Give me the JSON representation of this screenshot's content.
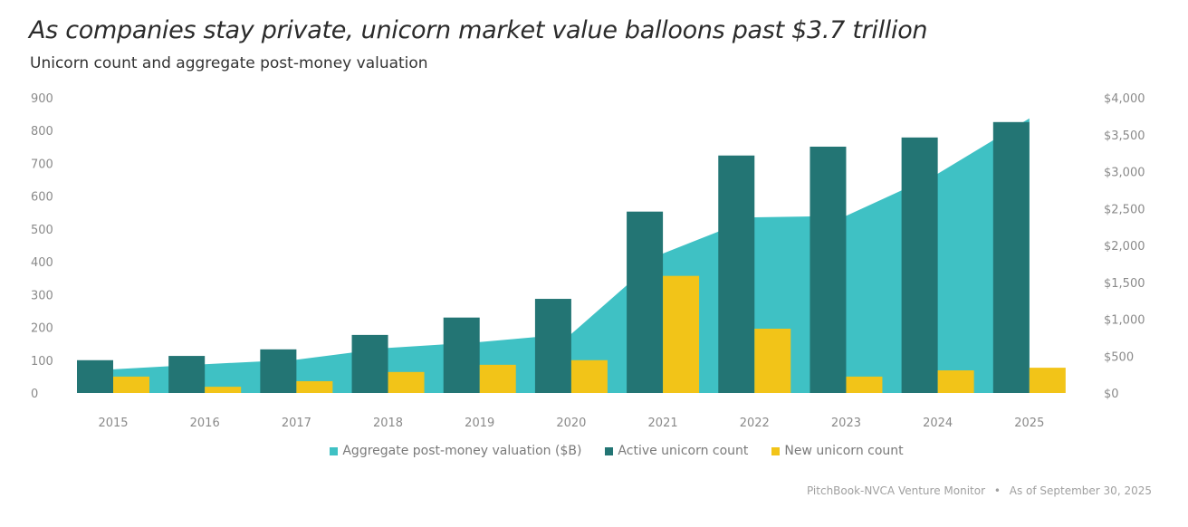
{
  "header": {
    "title": "As companies stay private, unicorn market value balloons past $3.7 trillion",
    "subtitle": "Unicorn count and aggregate post-money valuation"
  },
  "source": {
    "text": "PitchBook-NVCA Venture Monitor",
    "separator": "•",
    "date": "As of September 30, 2025"
  },
  "colors": {
    "valuation": "#3fc1c4",
    "active": "#237574",
    "new": "#f2c418",
    "tick_text": "#8a8a8a"
  },
  "chart_data": {
    "type": "bar",
    "title": "As companies stay private, unicorn market value balloons past $3.7 trillion",
    "subtitle": "Unicorn count and aggregate post-money valuation",
    "xlabel": "",
    "ylabel": "",
    "y2label": "",
    "categories": [
      "2015",
      "2016",
      "2017",
      "2018",
      "2019",
      "2020",
      "2021",
      "2022",
      "2023",
      "2024",
      "2025"
    ],
    "series": [
      {
        "name": "Aggregate post-money valuation ($B)",
        "type": "area",
        "axis": "right",
        "values": [
          320,
          390,
          450,
          610,
          690,
          800,
          1890,
          2380,
          2400,
          2970,
          3720
        ]
      },
      {
        "name": "Active unicorn count",
        "type": "bar",
        "axis": "left",
        "values": [
          100,
          113,
          133,
          177,
          230,
          287,
          553,
          724,
          751,
          779,
          826
        ]
      },
      {
        "name": "New unicorn count",
        "type": "bar",
        "axis": "left",
        "values": [
          50,
          19,
          36,
          64,
          86,
          100,
          357,
          196,
          50,
          69,
          77
        ]
      }
    ],
    "ylim": [
      0,
      900
    ],
    "yticks": [
      "900",
      "800",
      "700",
      "600",
      "500",
      "400",
      "300",
      "200",
      "100",
      "0"
    ],
    "y2lim": [
      0,
      4000
    ],
    "y2ticks": [
      "$4,000",
      "$3,500",
      "$3,000",
      "$2,500",
      "$2,000",
      "$1,500",
      "$1,000",
      "$500",
      "$0"
    ],
    "grid": false,
    "legend": {
      "position": "bottom",
      "entries": [
        "Aggregate post-money valuation ($B)",
        "Active unicorn count",
        "New unicorn count"
      ]
    }
  }
}
